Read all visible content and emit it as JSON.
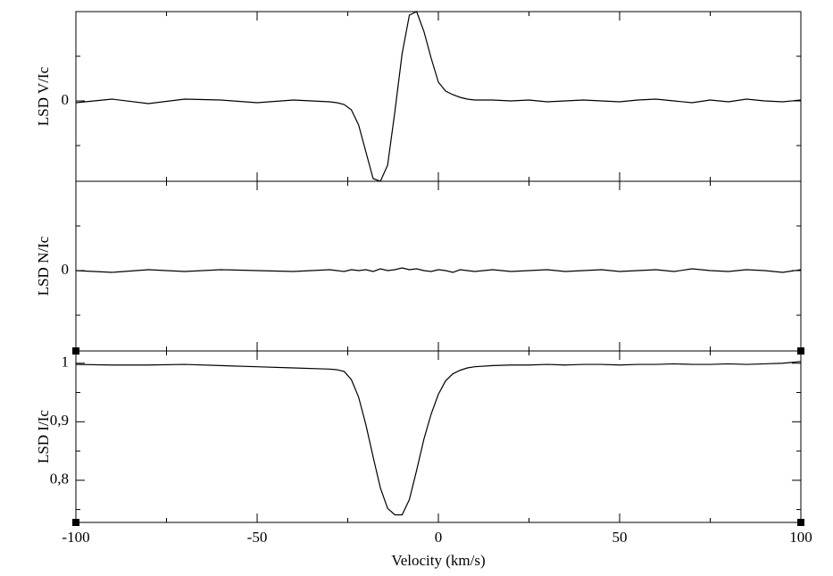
{
  "chart_data": [
    {
      "type": "line",
      "ylabel": "LSD V/Ic",
      "color": "#000000",
      "x": [
        -100,
        -90,
        -80,
        -70,
        -60,
        -50,
        -40,
        -30,
        -28,
        -26,
        -24,
        -22,
        -20,
        -18,
        -16,
        -14,
        -12,
        -10,
        -8,
        -6,
        -4,
        -2,
        0,
        2,
        4,
        6,
        8,
        10,
        15,
        20,
        25,
        30,
        35,
        40,
        45,
        50,
        55,
        60,
        65,
        70,
        75,
        80,
        85,
        90,
        95,
        100
      ],
      "values": [
        -0.02,
        0.02,
        -0.03,
        0.02,
        0.01,
        -0.02,
        0.01,
        -0.01,
        -0.02,
        -0.04,
        -0.1,
        -0.27,
        -0.57,
        -0.87,
        -0.9,
        -0.72,
        -0.12,
        0.53,
        0.96,
        1.0,
        0.78,
        0.48,
        0.21,
        0.11,
        0.07,
        0.04,
        0.02,
        0.01,
        0.01,
        0.0,
        0.01,
        -0.01,
        0.0,
        0.01,
        0.0,
        -0.01,
        0.01,
        0.02,
        0.0,
        -0.02,
        0.01,
        -0.01,
        0.02,
        0.0,
        -0.01,
        0.01
      ],
      "xlim": [
        -100,
        100
      ],
      "xticks": [
        -100,
        -50,
        0,
        50,
        100
      ],
      "xminorticks": [
        -75,
        -25,
        25,
        75
      ],
      "xtick_labels": false,
      "ylim": [
        -0.9,
        1.0
      ],
      "yticks": [
        0
      ],
      "yminorticks": [
        -0.5,
        0.5
      ]
    },
    {
      "type": "line",
      "ylabel": "LSD N/Ic",
      "color": "#000000",
      "x": [
        -100,
        -90,
        -80,
        -70,
        -60,
        -50,
        -40,
        -30,
        -28,
        -26,
        -24,
        -22,
        -20,
        -18,
        -16,
        -14,
        -12,
        -10,
        -8,
        -6,
        -4,
        -2,
        0,
        2,
        4,
        6,
        8,
        10,
        15,
        20,
        25,
        30,
        35,
        40,
        45,
        50,
        55,
        60,
        65,
        70,
        75,
        80,
        85,
        90,
        95,
        100
      ],
      "values": [
        0.0,
        -0.02,
        0.01,
        -0.01,
        0.01,
        0.0,
        -0.01,
        0.01,
        0.0,
        -0.01,
        0.01,
        0.0,
        0.01,
        -0.01,
        0.02,
        0.0,
        0.01,
        0.03,
        0.01,
        0.02,
        0.0,
        -0.01,
        0.01,
        0.0,
        -0.02,
        0.01,
        0.0,
        -0.01,
        0.01,
        -0.01,
        0.0,
        0.01,
        -0.01,
        0.0,
        0.01,
        -0.01,
        0.0,
        0.01,
        -0.01,
        0.02,
        0.0,
        -0.01,
        0.01,
        0.0,
        -0.02,
        0.01
      ],
      "xlim": [
        -100,
        100
      ],
      "xticks": [
        -100,
        -50,
        0,
        50,
        100
      ],
      "xminorticks": [
        -75,
        -25,
        25,
        75
      ],
      "xtick_labels": false,
      "ylim": [
        -0.9,
        1.0
      ],
      "yticks": [
        0
      ],
      "yminorticks": [
        -0.5,
        0.5
      ]
    },
    {
      "type": "line",
      "ylabel": "LSD I/Ic",
      "xlabel": "Velocity (km/s)",
      "color": "#000000",
      "x": [
        -100,
        -90,
        -80,
        -70,
        -60,
        -50,
        -40,
        -30,
        -28,
        -26,
        -24,
        -22,
        -20,
        -18,
        -16,
        -14,
        -12,
        -10,
        -8,
        -6,
        -4,
        -2,
        0,
        2,
        4,
        6,
        8,
        10,
        15,
        20,
        25,
        30,
        35,
        40,
        45,
        50,
        55,
        60,
        65,
        70,
        75,
        80,
        85,
        90,
        95,
        100
      ],
      "values": [
        0.998,
        0.997,
        0.997,
        0.998,
        0.996,
        0.994,
        0.992,
        0.99,
        0.989,
        0.986,
        0.972,
        0.942,
        0.895,
        0.84,
        0.787,
        0.752,
        0.741,
        0.741,
        0.767,
        0.817,
        0.87,
        0.913,
        0.947,
        0.97,
        0.982,
        0.988,
        0.992,
        0.994,
        0.996,
        0.997,
        0.997,
        0.998,
        0.997,
        0.998,
        0.998,
        0.997,
        0.998,
        0.998,
        0.999,
        0.998,
        0.998,
        0.999,
        0.998,
        0.999,
        1.0,
        1.003
      ],
      "xlim": [
        -100,
        100
      ],
      "xticks": [
        -100,
        -50,
        0,
        50,
        100
      ],
      "xminorticks": [
        -75,
        -25,
        25,
        75
      ],
      "xtick_labels": true,
      "ylim": [
        0.728,
        1.021
      ],
      "yticks": [
        1,
        {
          "value": 0.9,
          "label": "0,9"
        },
        {
          "value": 0.8,
          "label": "0,8"
        }
      ],
      "yminorticks": [
        0.95,
        0.85,
        0.75
      ]
    }
  ]
}
